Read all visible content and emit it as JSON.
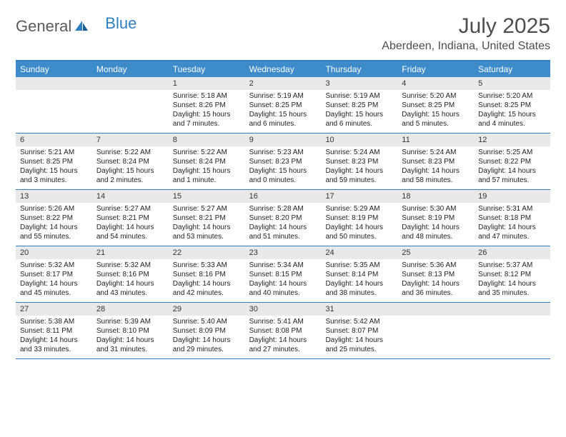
{
  "brand": {
    "part1": "General",
    "part2": "Blue"
  },
  "title": "July 2025",
  "location": "Aberdeen, Indiana, United States",
  "colors": {
    "header_blue": "#3d8bc8",
    "rule_blue": "#2f7ec2",
    "daynum_bg": "#e9e9e9",
    "text": "#4d4d4d"
  },
  "days_of_week": [
    "Sunday",
    "Monday",
    "Tuesday",
    "Wednesday",
    "Thursday",
    "Friday",
    "Saturday"
  ],
  "weeks": [
    [
      null,
      null,
      {
        "n": "1",
        "sunrise": "5:18 AM",
        "sunset": "8:26 PM",
        "dl": "15 hours and 7 minutes."
      },
      {
        "n": "2",
        "sunrise": "5:19 AM",
        "sunset": "8:25 PM",
        "dl": "15 hours and 6 minutes."
      },
      {
        "n": "3",
        "sunrise": "5:19 AM",
        "sunset": "8:25 PM",
        "dl": "15 hours and 6 minutes."
      },
      {
        "n": "4",
        "sunrise": "5:20 AM",
        "sunset": "8:25 PM",
        "dl": "15 hours and 5 minutes."
      },
      {
        "n": "5",
        "sunrise": "5:20 AM",
        "sunset": "8:25 PM",
        "dl": "15 hours and 4 minutes."
      }
    ],
    [
      {
        "n": "6",
        "sunrise": "5:21 AM",
        "sunset": "8:25 PM",
        "dl": "15 hours and 3 minutes."
      },
      {
        "n": "7",
        "sunrise": "5:22 AM",
        "sunset": "8:24 PM",
        "dl": "15 hours and 2 minutes."
      },
      {
        "n": "8",
        "sunrise": "5:22 AM",
        "sunset": "8:24 PM",
        "dl": "15 hours and 1 minute."
      },
      {
        "n": "9",
        "sunrise": "5:23 AM",
        "sunset": "8:23 PM",
        "dl": "15 hours and 0 minutes."
      },
      {
        "n": "10",
        "sunrise": "5:24 AM",
        "sunset": "8:23 PM",
        "dl": "14 hours and 59 minutes."
      },
      {
        "n": "11",
        "sunrise": "5:24 AM",
        "sunset": "8:23 PM",
        "dl": "14 hours and 58 minutes."
      },
      {
        "n": "12",
        "sunrise": "5:25 AM",
        "sunset": "8:22 PM",
        "dl": "14 hours and 57 minutes."
      }
    ],
    [
      {
        "n": "13",
        "sunrise": "5:26 AM",
        "sunset": "8:22 PM",
        "dl": "14 hours and 55 minutes."
      },
      {
        "n": "14",
        "sunrise": "5:27 AM",
        "sunset": "8:21 PM",
        "dl": "14 hours and 54 minutes."
      },
      {
        "n": "15",
        "sunrise": "5:27 AM",
        "sunset": "8:21 PM",
        "dl": "14 hours and 53 minutes."
      },
      {
        "n": "16",
        "sunrise": "5:28 AM",
        "sunset": "8:20 PM",
        "dl": "14 hours and 51 minutes."
      },
      {
        "n": "17",
        "sunrise": "5:29 AM",
        "sunset": "8:19 PM",
        "dl": "14 hours and 50 minutes."
      },
      {
        "n": "18",
        "sunrise": "5:30 AM",
        "sunset": "8:19 PM",
        "dl": "14 hours and 48 minutes."
      },
      {
        "n": "19",
        "sunrise": "5:31 AM",
        "sunset": "8:18 PM",
        "dl": "14 hours and 47 minutes."
      }
    ],
    [
      {
        "n": "20",
        "sunrise": "5:32 AM",
        "sunset": "8:17 PM",
        "dl": "14 hours and 45 minutes."
      },
      {
        "n": "21",
        "sunrise": "5:32 AM",
        "sunset": "8:16 PM",
        "dl": "14 hours and 43 minutes."
      },
      {
        "n": "22",
        "sunrise": "5:33 AM",
        "sunset": "8:16 PM",
        "dl": "14 hours and 42 minutes."
      },
      {
        "n": "23",
        "sunrise": "5:34 AM",
        "sunset": "8:15 PM",
        "dl": "14 hours and 40 minutes."
      },
      {
        "n": "24",
        "sunrise": "5:35 AM",
        "sunset": "8:14 PM",
        "dl": "14 hours and 38 minutes."
      },
      {
        "n": "25",
        "sunrise": "5:36 AM",
        "sunset": "8:13 PM",
        "dl": "14 hours and 36 minutes."
      },
      {
        "n": "26",
        "sunrise": "5:37 AM",
        "sunset": "8:12 PM",
        "dl": "14 hours and 35 minutes."
      }
    ],
    [
      {
        "n": "27",
        "sunrise": "5:38 AM",
        "sunset": "8:11 PM",
        "dl": "14 hours and 33 minutes."
      },
      {
        "n": "28",
        "sunrise": "5:39 AM",
        "sunset": "8:10 PM",
        "dl": "14 hours and 31 minutes."
      },
      {
        "n": "29",
        "sunrise": "5:40 AM",
        "sunset": "8:09 PM",
        "dl": "14 hours and 29 minutes."
      },
      {
        "n": "30",
        "sunrise": "5:41 AM",
        "sunset": "8:08 PM",
        "dl": "14 hours and 27 minutes."
      },
      {
        "n": "31",
        "sunrise": "5:42 AM",
        "sunset": "8:07 PM",
        "dl": "14 hours and 25 minutes."
      },
      null,
      null
    ]
  ],
  "labels": {
    "sunrise": "Sunrise:",
    "sunset": "Sunset:",
    "daylight": "Daylight:"
  }
}
